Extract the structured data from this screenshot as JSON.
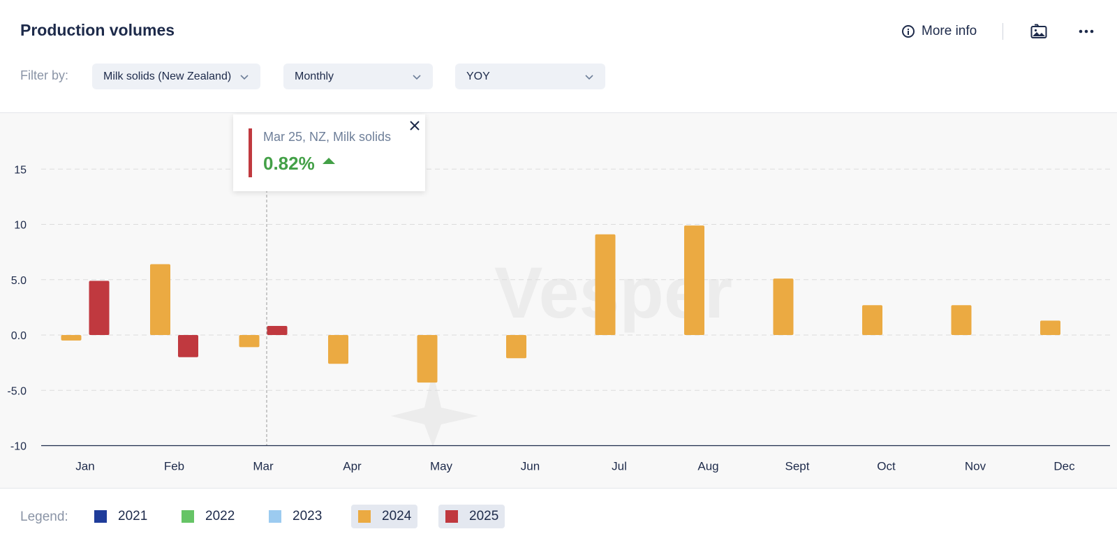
{
  "header": {
    "title": "Production volumes",
    "more_info_label": "More info",
    "filter_label": "Filter by:"
  },
  "filters": [
    {
      "value": "Milk solids (New Zealand)"
    },
    {
      "value": "Monthly"
    },
    {
      "value": "YOY"
    }
  ],
  "tooltip": {
    "label": "Mar 25, NZ, Milk solids",
    "value": "0.82%",
    "direction": "up",
    "accent_color": "#c0393f",
    "value_color": "#43a047"
  },
  "watermark": "Vesper",
  "legend": {
    "label": "Legend:",
    "items": [
      {
        "name": "2021",
        "color": "#1f3c9a",
        "active": false
      },
      {
        "name": "2022",
        "color": "#66c466",
        "active": false
      },
      {
        "name": "2023",
        "color": "#9ccbf0",
        "active": false
      },
      {
        "name": "2024",
        "color": "#ebaa42",
        "active": true
      },
      {
        "name": "2025",
        "color": "#c0393f",
        "active": true
      }
    ]
  },
  "chart_data": {
    "type": "bar",
    "title": "",
    "xlabel": "",
    "ylabel": "",
    "categories": [
      "Jan",
      "Feb",
      "Mar",
      "Apr",
      "May",
      "Jun",
      "Jul",
      "Aug",
      "Sept",
      "Oct",
      "Nov",
      "Dec"
    ],
    "y_ticks": [
      {
        "value": 15,
        "label": "15"
      },
      {
        "value": 10,
        "label": "10"
      },
      {
        "value": 5,
        "label": "5.0"
      },
      {
        "value": 0,
        "label": "0.0"
      },
      {
        "value": -5,
        "label": "-5.0"
      },
      {
        "value": -10,
        "label": "-10"
      }
    ],
    "ylim": [
      -10,
      17
    ],
    "grid": true,
    "series": [
      {
        "name": "2024",
        "color": "#ebaa42",
        "values": [
          -0.5,
          6.4,
          -1.1,
          -2.6,
          -4.3,
          -2.1,
          9.1,
          9.9,
          5.1,
          2.7,
          2.7,
          1.3
        ]
      },
      {
        "name": "2025",
        "color": "#c0393f",
        "values": [
          4.9,
          -2.0,
          0.82,
          null,
          null,
          null,
          null,
          null,
          null,
          null,
          null,
          null
        ]
      }
    ],
    "highlight_category": "Mar"
  }
}
